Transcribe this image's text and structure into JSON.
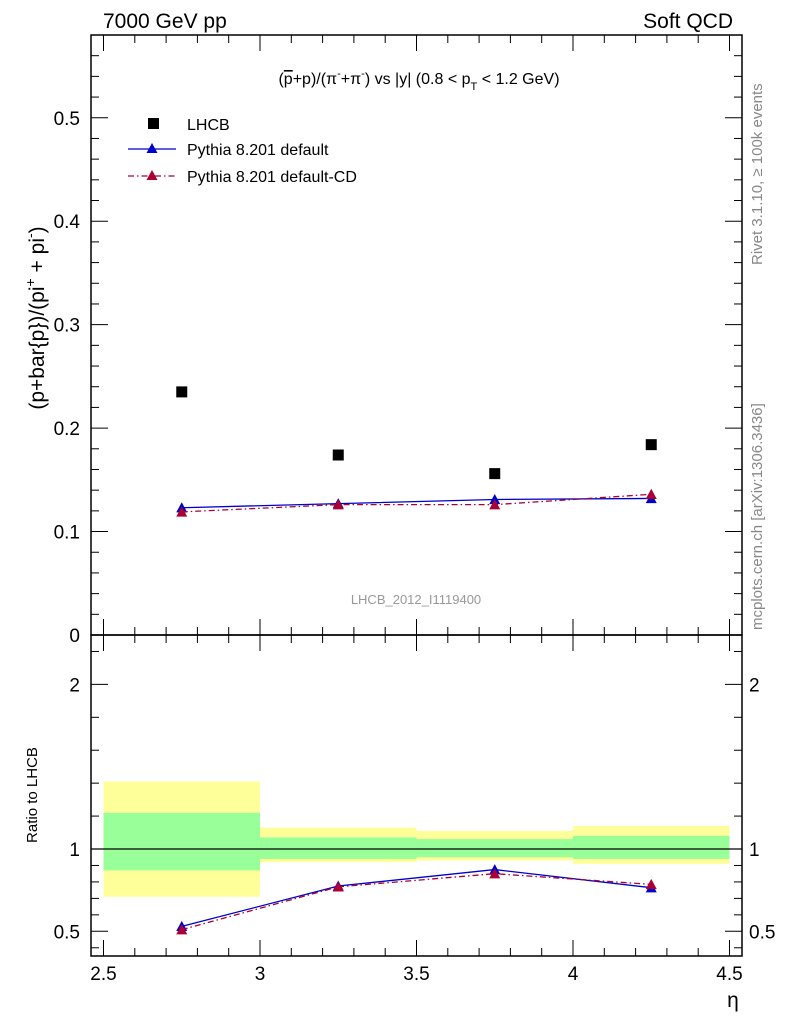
{
  "header": {
    "left": "7000 GeV pp",
    "right": "Soft QCD"
  },
  "side_text": {
    "rivet": "Rivet 3.1.10, ≥ 100k events",
    "mcplots": "mcplots.cern.ch [arXiv:1306.3436]"
  },
  "watermark": "LHCB_2012_I1119400",
  "chart_data": [
    {
      "type": "scatter",
      "title_parts": [
        "(",
        "p",
        "+p)/(π",
        "-",
        "+π",
        "-",
        ") vs |y| (0.8 < p",
        "T",
        " < 1.2 GeV)"
      ],
      "ylabel": "(p+bar{p})/(pi⁺ + pi⁻)",
      "ylabel_parts": [
        "(p+bar{p})/(pi",
        "+",
        " + pi",
        "-",
        ")"
      ],
      "xlim": [
        2.5,
        4.5
      ],
      "ylim": [
        0,
        0.58
      ],
      "yticks": [
        "0",
        "0.1",
        "0.2",
        "0.3",
        "0.4",
        "0.5"
      ],
      "ytick_values": [
        0,
        0.1,
        0.2,
        0.3,
        0.4,
        0.5
      ],
      "x": [
        2.75,
        3.25,
        3.75,
        4.25
      ],
      "series": [
        {
          "name": "LHCB",
          "style": "data",
          "color": "#000000",
          "values": [
            0.235,
            0.174,
            0.156,
            0.184
          ]
        },
        {
          "name": "Pythia 8.201 default",
          "style": "solid",
          "color": "#0000cc",
          "values": [
            0.123,
            0.127,
            0.131,
            0.132
          ]
        },
        {
          "name": "Pythia 8.201 default-CD",
          "style": "dashdot",
          "color": "#aa0033",
          "values": [
            0.119,
            0.126,
            0.126,
            0.136
          ]
        }
      ],
      "legend_position": "top-left"
    },
    {
      "type": "line",
      "ylabel": "Ratio to LHCB",
      "xlabel": "η",
      "xlim": [
        2.5,
        4.5
      ],
      "ylim": [
        0.35,
        2.3
      ],
      "xticks": [
        "2.5",
        "3",
        "3.5",
        "4",
        "4.5"
      ],
      "xtick_values": [
        2.5,
        3,
        3.5,
        4,
        4.5
      ],
      "yticks": [
        "0.5",
        "1",
        "2"
      ],
      "ytick_values": [
        0.5,
        1,
        2
      ],
      "bins": [
        [
          2.5,
          3.0
        ],
        [
          3.0,
          3.5
        ],
        [
          3.5,
          4.0
        ],
        [
          4.0,
          4.5
        ]
      ],
      "band_inner": [
        [
          0.87,
          1.22
        ],
        [
          0.94,
          1.07
        ],
        [
          0.95,
          1.06
        ],
        [
          0.94,
          1.08
        ]
      ],
      "band_outer": [
        [
          0.71,
          1.41
        ],
        [
          0.92,
          1.13
        ],
        [
          0.93,
          1.11
        ],
        [
          0.91,
          1.14
        ]
      ],
      "x": [
        2.75,
        3.25,
        3.75,
        4.25
      ],
      "series": [
        {
          "name": "Pythia 8.201 default",
          "style": "solid",
          "color": "#0000cc",
          "values": [
            0.53,
            0.775,
            0.875,
            0.765
          ]
        },
        {
          "name": "Pythia 8.201 default-CD",
          "style": "dashdot",
          "color": "#aa0033",
          "values": [
            0.51,
            0.77,
            0.85,
            0.785
          ]
        }
      ],
      "colors": {
        "inner_band": "#99ff99",
        "outer_band": "#ffff99"
      }
    }
  ]
}
